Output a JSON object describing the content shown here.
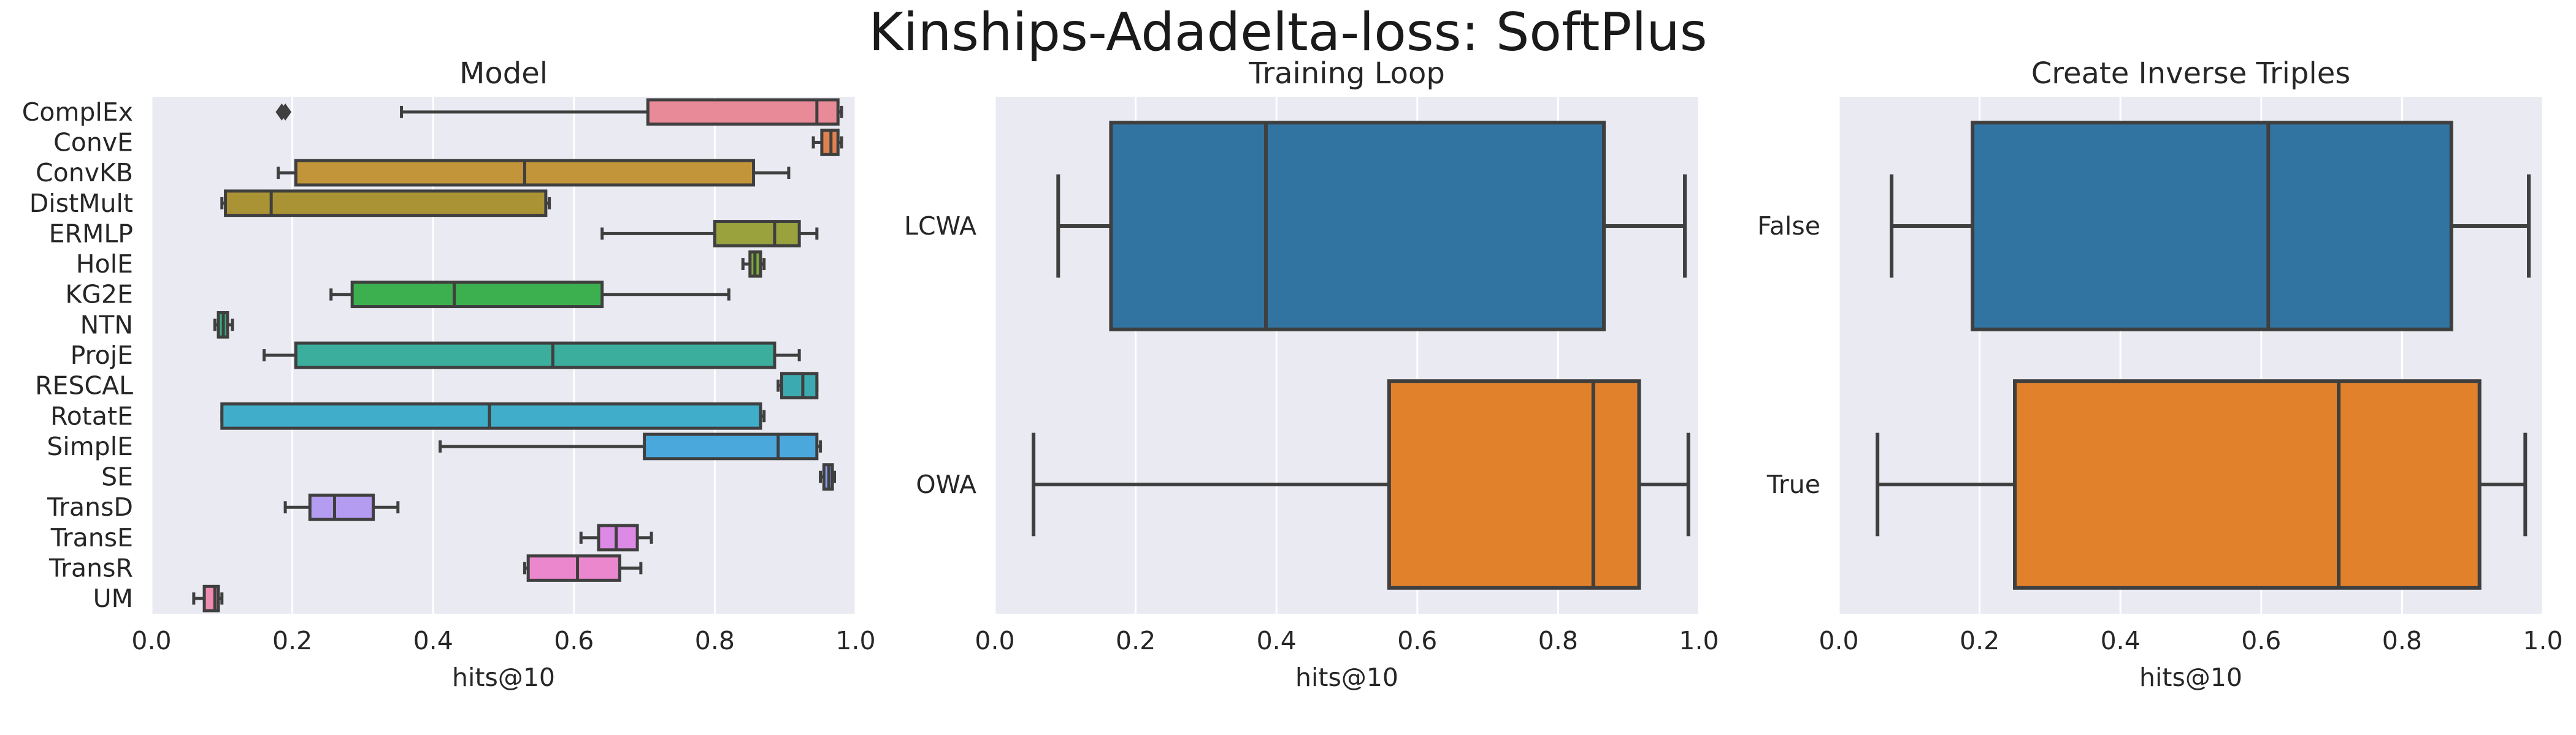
{
  "suptitle": "Kinships-Adadelta-loss: SoftPlus",
  "chart_data": [
    {
      "type": "box",
      "title": "Model",
      "xlabel": "hits@10",
      "ylabel": "",
      "xlim": [
        0.0,
        1.0
      ],
      "xticks": [
        "0.0",
        "0.2",
        "0.4",
        "0.6",
        "0.8",
        "1.0"
      ],
      "grid": true,
      "categories": [
        "ComplEx",
        "ConvE",
        "ConvKB",
        "DistMult",
        "ERMLP",
        "HolE",
        "KG2E",
        "NTN",
        "ProjE",
        "RESCAL",
        "RotatE",
        "SimplE",
        "SE",
        "TransD",
        "TransE",
        "TransR",
        "UM"
      ],
      "colors": [
        "#e88a98",
        "#e0824f",
        "#c3953a",
        "#aa9335",
        "#9aa23e",
        "#7dab3a",
        "#3cb04f",
        "#3aae83",
        "#3cae9d",
        "#3cabb1",
        "#40aecb",
        "#4aa8dc",
        "#8a9ef0",
        "#b49cf0",
        "#dd8ae6",
        "#ea87cd",
        "#ef8ab0"
      ],
      "boxes": [
        {
          "whislo": 0.355,
          "q1": 0.705,
          "med": 0.945,
          "q3": 0.975,
          "whishi": 0.98,
          "fliers": [
            0.185,
            0.19
          ]
        },
        {
          "whislo": 0.94,
          "q1": 0.952,
          "med": 0.965,
          "q3": 0.975,
          "whishi": 0.98,
          "fliers": []
        },
        {
          "whislo": 0.18,
          "q1": 0.205,
          "med": 0.53,
          "q3": 0.855,
          "whishi": 0.905,
          "fliers": []
        },
        {
          "whislo": 0.1,
          "q1": 0.105,
          "med": 0.17,
          "q3": 0.56,
          "whishi": 0.565,
          "fliers": []
        },
        {
          "whislo": 0.64,
          "q1": 0.8,
          "med": 0.885,
          "q3": 0.92,
          "whishi": 0.945,
          "fliers": []
        },
        {
          "whislo": 0.84,
          "q1": 0.85,
          "med": 0.857,
          "q3": 0.865,
          "whishi": 0.87,
          "fliers": []
        },
        {
          "whislo": 0.255,
          "q1": 0.285,
          "med": 0.43,
          "q3": 0.64,
          "whishi": 0.82,
          "fliers": []
        },
        {
          "whislo": 0.09,
          "q1": 0.095,
          "med": 0.102,
          "q3": 0.108,
          "whishi": 0.115,
          "fliers": []
        },
        {
          "whislo": 0.16,
          "q1": 0.205,
          "med": 0.57,
          "q3": 0.885,
          "whishi": 0.92,
          "fliers": []
        },
        {
          "whislo": 0.89,
          "q1": 0.895,
          "med": 0.925,
          "q3": 0.945,
          "whishi": 0.945,
          "fliers": []
        },
        {
          "whislo": 0.1,
          "q1": 0.1,
          "med": 0.48,
          "q3": 0.865,
          "whishi": 0.87,
          "fliers": []
        },
        {
          "whislo": 0.41,
          "q1": 0.7,
          "med": 0.89,
          "q3": 0.945,
          "whishi": 0.95,
          "fliers": []
        },
        {
          "whislo": 0.95,
          "q1": 0.955,
          "med": 0.962,
          "q3": 0.967,
          "whishi": 0.97,
          "fliers": []
        },
        {
          "whislo": 0.19,
          "q1": 0.225,
          "med": 0.26,
          "q3": 0.315,
          "whishi": 0.35,
          "fliers": []
        },
        {
          "whislo": 0.61,
          "q1": 0.635,
          "med": 0.66,
          "q3": 0.69,
          "whishi": 0.71,
          "fliers": []
        },
        {
          "whislo": 0.53,
          "q1": 0.535,
          "med": 0.605,
          "q3": 0.665,
          "whishi": 0.695,
          "fliers": []
        },
        {
          "whislo": 0.06,
          "q1": 0.075,
          "med": 0.09,
          "q3": 0.095,
          "whishi": 0.1,
          "fliers": []
        }
      ]
    },
    {
      "type": "box",
      "title": "Training Loop",
      "xlabel": "hits@10",
      "ylabel": "",
      "xlim": [
        0.0,
        1.0
      ],
      "xticks": [
        "0.0",
        "0.2",
        "0.4",
        "0.6",
        "0.8",
        "1.0"
      ],
      "grid": true,
      "categories": [
        "LCWA",
        "OWA"
      ],
      "colors": [
        "#3274a1",
        "#e1812c"
      ],
      "boxes": [
        {
          "whislo": 0.09,
          "q1": 0.165,
          "med": 0.385,
          "q3": 0.865,
          "whishi": 0.98,
          "fliers": []
        },
        {
          "whislo": 0.055,
          "q1": 0.56,
          "med": 0.85,
          "q3": 0.915,
          "whishi": 0.985,
          "fliers": []
        }
      ]
    },
    {
      "type": "box",
      "title": "Create Inverse Triples",
      "xlabel": "hits@10",
      "ylabel": "",
      "xlim": [
        0.0,
        1.0
      ],
      "xticks": [
        "0.0",
        "0.2",
        "0.4",
        "0.6",
        "0.8",
        "1.0"
      ],
      "grid": true,
      "categories": [
        "False",
        "True"
      ],
      "colors": [
        "#3274a1",
        "#e1812c"
      ],
      "boxes": [
        {
          "whislo": 0.075,
          "q1": 0.19,
          "med": 0.61,
          "q3": 0.87,
          "whishi": 0.98,
          "fliers": []
        },
        {
          "whislo": 0.055,
          "q1": 0.25,
          "med": 0.71,
          "q3": 0.91,
          "whishi": 0.975,
          "fliers": []
        }
      ]
    }
  ]
}
